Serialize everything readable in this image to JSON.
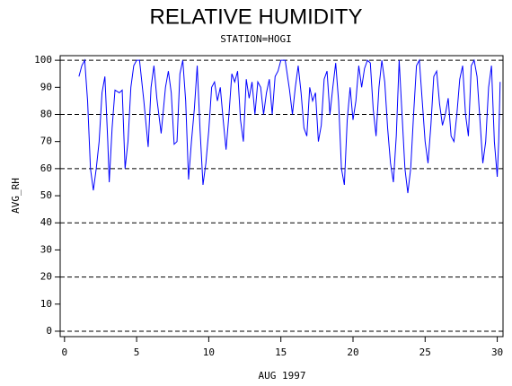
{
  "chart_data": {
    "type": "line",
    "title": "RELATIVE HUMIDITY",
    "subtitle": "STATION=HOGI",
    "y_label": "AVG_RH",
    "x_label": "AUG 1997",
    "x": [
      1.0,
      1.2,
      1.4,
      1.6,
      1.8,
      2.0,
      2.2,
      2.4,
      2.6,
      2.8,
      3.0,
      3.1,
      3.3,
      3.5,
      3.8,
      4.0,
      4.2,
      4.4,
      4.6,
      4.8,
      5.0,
      5.2,
      5.5,
      5.8,
      6.0,
      6.2,
      6.4,
      6.7,
      7.0,
      7.2,
      7.4,
      7.6,
      7.8,
      8.0,
      8.2,
      8.4,
      8.6,
      8.8,
      9.0,
      9.2,
      9.4,
      9.6,
      9.8,
      10.0,
      10.2,
      10.4,
      10.6,
      10.8,
      11.0,
      11.2,
      11.4,
      11.6,
      11.8,
      12.0,
      12.2,
      12.4,
      12.6,
      12.8,
      13.0,
      13.2,
      13.4,
      13.6,
      13.8,
      14.0,
      14.2,
      14.4,
      14.6,
      14.8,
      15.0,
      15.3,
      15.6,
      15.8,
      16.0,
      16.2,
      16.4,
      16.6,
      16.8,
      17.0,
      17.2,
      17.4,
      17.6,
      17.8,
      18.0,
      18.2,
      18.4,
      18.6,
      18.8,
      19.0,
      19.2,
      19.4,
      19.6,
      19.8,
      20.0,
      20.2,
      20.4,
      20.6,
      20.8,
      21.0,
      21.2,
      21.4,
      21.6,
      21.8,
      22.0,
      22.2,
      22.4,
      22.6,
      22.8,
      23.0,
      23.2,
      23.4,
      23.6,
      23.8,
      24.0,
      24.2,
      24.4,
      24.6,
      24.8,
      25.0,
      25.2,
      25.4,
      25.6,
      25.8,
      26.0,
      26.2,
      26.4,
      26.6,
      26.8,
      27.0,
      27.2,
      27.4,
      27.6,
      27.8,
      28.0,
      28.2,
      28.4,
      28.6,
      28.8,
      29.0,
      29.2,
      29.4,
      29.6,
      29.8,
      30.0,
      30.1,
      30.2
    ],
    "series": [
      {
        "name": "AVG_RH",
        "color": "#0000ff",
        "values": [
          94,
          98,
          100,
          85,
          60,
          52,
          60,
          70,
          88,
          94,
          70,
          55,
          75,
          89,
          88,
          89,
          60,
          70,
          90,
          98,
          100,
          100,
          85,
          68,
          90,
          98,
          86,
          73,
          90,
          96,
          88,
          69,
          70,
          95,
          100,
          85,
          56,
          70,
          82,
          98,
          74,
          54,
          62,
          74,
          90,
          92,
          85,
          90,
          78,
          67,
          80,
          95,
          92,
          96,
          78,
          70,
          93,
          86,
          92,
          80,
          92,
          90,
          80,
          88,
          93,
          80,
          94,
          96,
          100,
          100,
          89,
          80,
          90,
          98,
          88,
          75,
          72,
          90,
          85,
          88,
          70,
          76,
          93,
          96,
          80,
          90,
          99,
          85,
          60,
          54,
          78,
          90,
          78,
          85,
          98,
          90,
          97,
          100,
          99,
          82,
          72,
          90,
          100,
          92,
          75,
          62,
          55,
          72,
          100,
          80,
          60,
          51,
          60,
          80,
          98,
          100,
          85,
          70,
          62,
          76,
          94,
          96,
          84,
          76,
          80,
          86,
          72,
          70,
          80,
          93,
          98,
          80,
          72,
          98,
          100,
          94,
          78,
          62,
          70,
          90,
          98,
          70,
          57,
          70,
          92
        ]
      }
    ],
    "xlim": [
      -0.3,
      30.4
    ],
    "ylim": [
      -2,
      101.7
    ],
    "xticks": [
      0,
      5,
      10,
      15,
      20,
      25,
      30
    ],
    "yticks": [
      0,
      10,
      20,
      30,
      40,
      50,
      60,
      70,
      80,
      90,
      100
    ],
    "reference_lines": [
      0,
      20,
      40,
      60,
      80,
      100
    ]
  }
}
